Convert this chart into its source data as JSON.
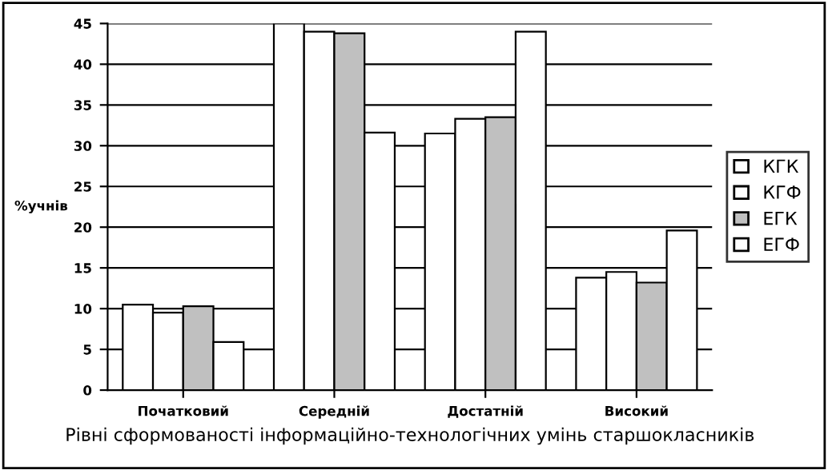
{
  "chart_data": {
    "type": "bar",
    "xlabel": "Рівні сформованості інформаційно-технологічних умінь старшокласників",
    "ylabel": "%учнів",
    "categories": [
      "Початковий",
      "Середній",
      "Достатній",
      "Високий"
    ],
    "series": [
      {
        "name": "КГК",
        "color": "#ffffff",
        "values": [
          10.5,
          45,
          31.5,
          13.8
        ]
      },
      {
        "name": "КГФ",
        "color": "#ffffff",
        "values": [
          9.5,
          44,
          33.3,
          14.5
        ]
      },
      {
        "name": "ЕГК",
        "color": "#c0c0c0",
        "values": [
          10.3,
          43.8,
          33.5,
          13.2
        ]
      },
      {
        "name": "ЕГФ",
        "color": "#ffffff",
        "values": [
          5.9,
          31.6,
          44,
          19.6
        ]
      }
    ],
    "ylim": [
      0,
      45
    ],
    "yticks": [
      0,
      5,
      10,
      15,
      20,
      25,
      30,
      35,
      40,
      45
    ],
    "grid": "y",
    "legend": "right"
  }
}
